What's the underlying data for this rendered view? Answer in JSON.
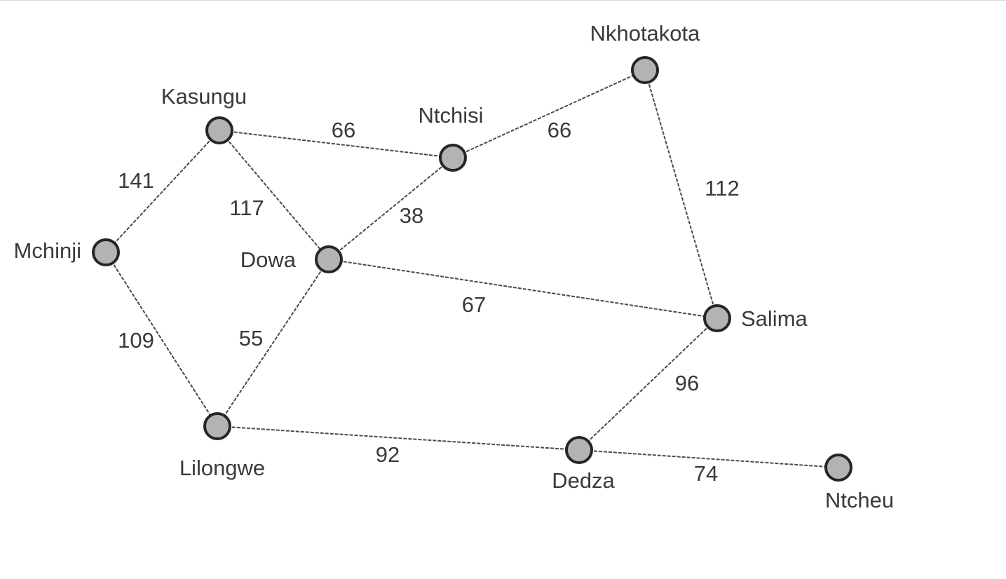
{
  "colors": {
    "node_fill": "#b3b3b3",
    "node_stroke": "#262626",
    "edge": "#4a4a4a",
    "text": "#3a3a3a"
  },
  "nodes": [
    {
      "id": "kasungu",
      "label": "Kasungu"
    },
    {
      "id": "ntchisi",
      "label": "Ntchisi"
    },
    {
      "id": "nkhotakota",
      "label": "Nkhotakota"
    },
    {
      "id": "mchinji",
      "label": "Mchinji"
    },
    {
      "id": "dowa",
      "label": "Dowa"
    },
    {
      "id": "salima",
      "label": "Salima"
    },
    {
      "id": "lilongwe",
      "label": "Lilongwe"
    },
    {
      "id": "dedza",
      "label": "Dedza"
    },
    {
      "id": "ntcheu",
      "label": "Ntcheu"
    }
  ],
  "edges": [
    {
      "from": "kasungu",
      "to": "ntchisi",
      "weight": "66"
    },
    {
      "from": "ntchisi",
      "to": "nkhotakota",
      "weight": "66"
    },
    {
      "from": "kasungu",
      "to": "mchinji",
      "weight": "141"
    },
    {
      "from": "kasungu",
      "to": "dowa",
      "weight": "117"
    },
    {
      "from": "dowa",
      "to": "ntchisi",
      "weight": "38"
    },
    {
      "from": "nkhotakota",
      "to": "salima",
      "weight": "112"
    },
    {
      "from": "dowa",
      "to": "salima",
      "weight": "67"
    },
    {
      "from": "mchinji",
      "to": "lilongwe",
      "weight": "109"
    },
    {
      "from": "dowa",
      "to": "lilongwe",
      "weight": "55"
    },
    {
      "from": "salima",
      "to": "dedza",
      "weight": "96"
    },
    {
      "from": "lilongwe",
      "to": "dedza",
      "weight": "92"
    },
    {
      "from": "dedza",
      "to": "ntcheu",
      "weight": "74"
    }
  ]
}
